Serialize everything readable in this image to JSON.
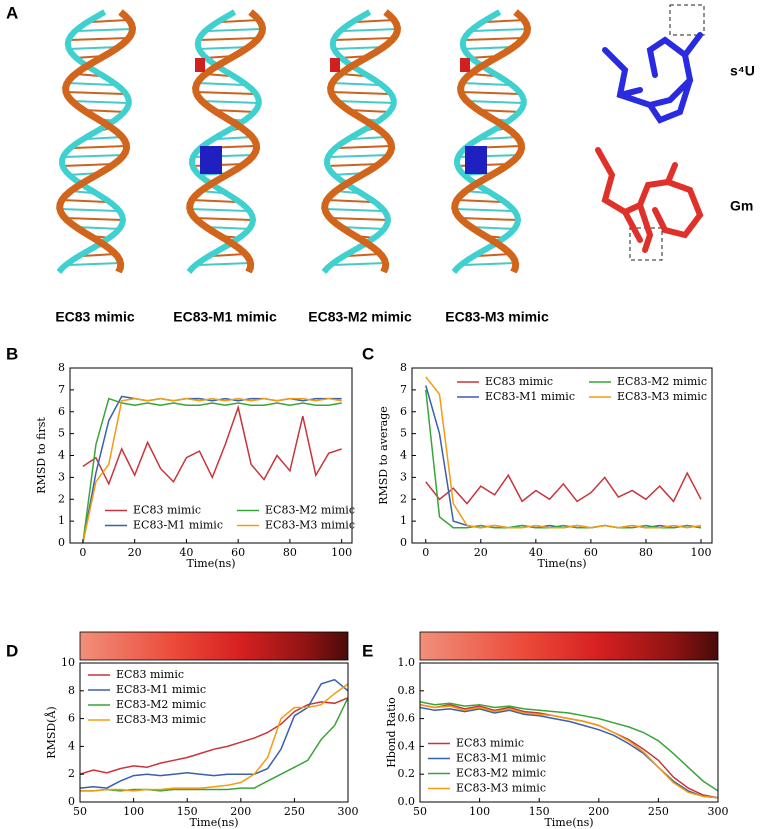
{
  "panel_a": {
    "label": "A",
    "structures": [
      "EC83 mimic",
      "EC83-M1 mimic",
      "EC83-M2 mimic",
      "EC83-M3 mimic"
    ],
    "modifications": [
      "s⁴U",
      "Gm"
    ]
  },
  "chart_data": [
    {
      "type": "line",
      "panel_label": "B",
      "xlabel": "Time(ns)",
      "ylabel": "RMSD to first",
      "x": [
        0,
        5,
        10,
        15,
        20,
        25,
        30,
        35,
        40,
        45,
        50,
        55,
        60,
        65,
        70,
        75,
        80,
        85,
        90,
        95,
        100
      ],
      "xlim": [
        -5,
        104
      ],
      "xticks": [
        0,
        20,
        40,
        60,
        80,
        100
      ],
      "ylim": [
        0,
        8
      ],
      "yticks": [
        0,
        1,
        2,
        3,
        4,
        5,
        6,
        7,
        8
      ],
      "legend": "lower center",
      "legend_columns": 2,
      "colorbar": false,
      "series": [
        {
          "name": "EC83 mimic",
          "color": "#c8343a",
          "values": [
            3.5,
            3.9,
            2.7,
            4.3,
            3.1,
            4.6,
            3.4,
            2.8,
            3.9,
            4.2,
            3.0,
            4.5,
            6.2,
            3.6,
            2.9,
            4.0,
            3.3,
            5.8,
            3.1,
            4.1,
            4.3
          ]
        },
        {
          "name": "EC83-M1 mimic",
          "color": "#3a5fae",
          "values": [
            0,
            3.2,
            5.6,
            6.7,
            6.6,
            6.5,
            6.6,
            6.5,
            6.6,
            6.6,
            6.5,
            6.6,
            6.5,
            6.6,
            6.6,
            6.5,
            6.6,
            6.5,
            6.6,
            6.6,
            6.6
          ]
        },
        {
          "name": "EC83-M2 mimic",
          "color": "#3aa43a",
          "values": [
            0,
            4.5,
            6.6,
            6.4,
            6.3,
            6.4,
            6.3,
            6.4,
            6.3,
            6.3,
            6.4,
            6.3,
            6.4,
            6.3,
            6.3,
            6.4,
            6.3,
            6.4,
            6.3,
            6.3,
            6.4
          ]
        },
        {
          "name": "EC83-M3 mimic",
          "color": "#f39c12",
          "values": [
            0,
            2.8,
            3.6,
            6.5,
            6.6,
            6.5,
            6.6,
            6.5,
            6.6,
            6.5,
            6.6,
            6.5,
            6.6,
            6.5,
            6.6,
            6.5,
            6.6,
            6.6,
            6.5,
            6.6,
            6.5
          ]
        }
      ]
    },
    {
      "type": "line",
      "panel_label": "C",
      "xlabel": "Time(ns)",
      "ylabel": "RMSD to average",
      "x": [
        0,
        5,
        10,
        15,
        20,
        25,
        30,
        35,
        40,
        45,
        50,
        55,
        60,
        65,
        70,
        75,
        80,
        85,
        90,
        95,
        100
      ],
      "xlim": [
        -5,
        104
      ],
      "xticks": [
        0,
        20,
        40,
        60,
        80,
        100
      ],
      "ylim": [
        0,
        8
      ],
      "yticks": [
        0,
        1,
        2,
        3,
        4,
        5,
        6,
        7,
        8
      ],
      "legend": "upper center",
      "legend_columns": 2,
      "colorbar": false,
      "series": [
        {
          "name": "EC83 mimic",
          "color": "#c8343a",
          "values": [
            2.8,
            2.0,
            2.5,
            1.8,
            2.6,
            2.2,
            3.1,
            1.9,
            2.4,
            2.0,
            2.7,
            1.9,
            2.3,
            3.0,
            2.1,
            2.4,
            2.0,
            2.6,
            1.9,
            3.2,
            2.0
          ]
        },
        {
          "name": "EC83-M1 mimic",
          "color": "#3a5fae",
          "values": [
            7.2,
            5.0,
            1.0,
            0.8,
            0.7,
            0.8,
            0.7,
            0.8,
            0.7,
            0.8,
            0.7,
            0.8,
            0.7,
            0.8,
            0.7,
            0.8,
            0.7,
            0.8,
            0.7,
            0.8,
            0.7
          ]
        },
        {
          "name": "EC83-M2 mimic",
          "color": "#3aa43a",
          "values": [
            7.0,
            1.2,
            0.7,
            0.7,
            0.8,
            0.7,
            0.7,
            0.8,
            0.7,
            0.7,
            0.8,
            0.7,
            0.7,
            0.8,
            0.7,
            0.7,
            0.8,
            0.7,
            0.7,
            0.8,
            0.7
          ]
        },
        {
          "name": "EC83-M3 mimic",
          "color": "#f39c12",
          "values": [
            7.6,
            6.8,
            1.8,
            0.8,
            0.7,
            0.8,
            0.7,
            0.7,
            0.8,
            0.7,
            0.7,
            0.8,
            0.7,
            0.8,
            0.7,
            0.8,
            0.7,
            0.7,
            0.8,
            0.7,
            0.8
          ]
        }
      ]
    },
    {
      "type": "line",
      "panel_label": "D",
      "xlabel": "Time(ns)",
      "ylabel": "RMSD(Å)",
      "x": [
        50,
        62.5,
        75,
        87.5,
        100,
        112.5,
        125,
        137.5,
        150,
        162.5,
        175,
        187.5,
        200,
        212.5,
        225,
        237.5,
        250,
        262.5,
        275,
        287.5,
        300
      ],
      "xlim": [
        50,
        300
      ],
      "xticks": [
        50,
        100,
        150,
        200,
        250,
        300
      ],
      "ylim": [
        0,
        10
      ],
      "yticks": [
        0,
        2,
        4,
        6,
        8,
        10
      ],
      "legend": "upper left",
      "legend_columns": 1,
      "colorbar": true,
      "series": [
        {
          "name": "EC83 mimic",
          "color": "#c8343a",
          "values": [
            2.0,
            2.3,
            2.1,
            2.4,
            2.6,
            2.5,
            2.8,
            3.0,
            3.2,
            3.5,
            3.8,
            4.0,
            4.3,
            4.6,
            5.0,
            5.6,
            6.5,
            7.0,
            7.2,
            7.1,
            7.5
          ]
        },
        {
          "name": "EC83-M1 mimic",
          "color": "#3a5fae",
          "values": [
            1.0,
            1.1,
            1.0,
            1.5,
            1.9,
            2.0,
            1.9,
            2.0,
            2.1,
            2.0,
            1.9,
            2.0,
            2.0,
            2.0,
            2.4,
            3.8,
            6.2,
            6.8,
            8.5,
            8.8,
            8.0
          ]
        },
        {
          "name": "EC83-M2 mimic",
          "color": "#3aa43a",
          "values": [
            0.8,
            0.8,
            0.9,
            0.8,
            0.9,
            0.9,
            0.8,
            0.9,
            0.9,
            0.9,
            0.9,
            0.9,
            1.0,
            1.0,
            1.5,
            2.0,
            2.5,
            3.0,
            4.5,
            5.5,
            7.5
          ]
        },
        {
          "name": "EC83-M3 mimic",
          "color": "#f39c12",
          "values": [
            0.8,
            0.8,
            0.9,
            0.9,
            0.8,
            0.9,
            0.9,
            1.0,
            1.0,
            1.0,
            1.1,
            1.2,
            1.4,
            2.0,
            3.2,
            6.0,
            6.8,
            6.8,
            7.0,
            7.8,
            8.5
          ]
        }
      ]
    },
    {
      "type": "line",
      "panel_label": "E",
      "xlabel": "Time(ns)",
      "ylabel": "Hbond Ratio",
      "x": [
        50,
        62.5,
        75,
        87.5,
        100,
        112.5,
        125,
        137.5,
        150,
        162.5,
        175,
        187.5,
        200,
        212.5,
        225,
        237.5,
        250,
        262.5,
        275,
        287.5,
        300
      ],
      "xlim": [
        50,
        300
      ],
      "xticks": [
        50,
        100,
        150,
        200,
        250,
        300
      ],
      "ylim": [
        0,
        1
      ],
      "yticks": [
        {
          "value": 0,
          "label": "0.0"
        },
        {
          "value": 0.2,
          "label": "0.2"
        },
        {
          "value": 0.4,
          "label": "0.4"
        },
        {
          "value": 0.6,
          "label": "0.6"
        },
        {
          "value": 0.8,
          "label": "0.8"
        },
        {
          "value": 1,
          "label": "1.0"
        }
      ],
      "legend": "lower left",
      "legend_columns": 1,
      "colorbar": true,
      "series": [
        {
          "name": "EC83 mimic",
          "color": "#c8343a",
          "values": [
            0.7,
            0.68,
            0.7,
            0.67,
            0.69,
            0.66,
            0.68,
            0.65,
            0.64,
            0.62,
            0.6,
            0.58,
            0.55,
            0.5,
            0.45,
            0.38,
            0.3,
            0.18,
            0.1,
            0.05,
            0.03
          ]
        },
        {
          "name": "EC83-M1 mimic",
          "color": "#3a5fae",
          "values": [
            0.68,
            0.66,
            0.67,
            0.65,
            0.67,
            0.64,
            0.66,
            0.63,
            0.62,
            0.6,
            0.58,
            0.55,
            0.52,
            0.48,
            0.42,
            0.35,
            0.25,
            0.15,
            0.08,
            0.04,
            0.03
          ]
        },
        {
          "name": "EC83-M2 mimic",
          "color": "#3aa43a",
          "values": [
            0.72,
            0.7,
            0.71,
            0.69,
            0.7,
            0.68,
            0.69,
            0.67,
            0.66,
            0.65,
            0.64,
            0.62,
            0.6,
            0.57,
            0.54,
            0.5,
            0.44,
            0.35,
            0.25,
            0.15,
            0.08
          ]
        },
        {
          "name": "EC83-M3 mimic",
          "color": "#f39c12",
          "values": [
            0.7,
            0.68,
            0.69,
            0.66,
            0.68,
            0.65,
            0.67,
            0.64,
            0.63,
            0.62,
            0.6,
            0.58,
            0.55,
            0.5,
            0.44,
            0.36,
            0.25,
            0.14,
            0.07,
            0.04,
            0.03
          ]
        }
      ]
    }
  ]
}
